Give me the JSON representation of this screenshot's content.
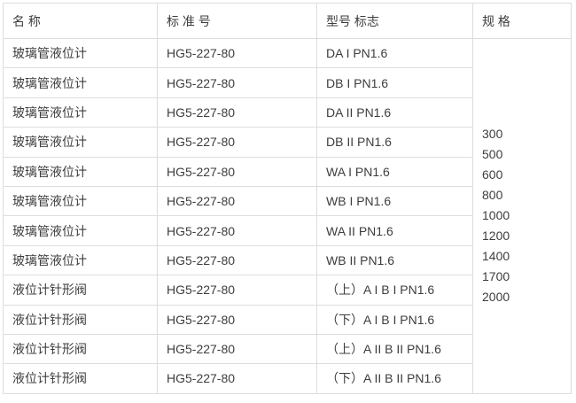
{
  "colors": {
    "border": "#dddddd",
    "text": "#3d3d3d",
    "background": "#ffffff"
  },
  "table": {
    "headers": [
      "名 称",
      "标 准 号",
      "型号 标志",
      "规 格"
    ],
    "rows": [
      {
        "name": "玻璃管液位计",
        "standard": "HG5-227-80",
        "model": "DA I PN1.6"
      },
      {
        "name": "玻璃管液位计",
        "standard": "HG5-227-80",
        "model": "DB I PN1.6"
      },
      {
        "name": "玻璃管液位计",
        "standard": "HG5-227-80",
        "model": "DA II PN1.6"
      },
      {
        "name": "玻璃管液位计",
        "standard": "HG5-227-80",
        "model": "DB II PN1.6"
      },
      {
        "name": "玻璃管液位计",
        "standard": "HG5-227-80",
        "model": "WA I PN1.6"
      },
      {
        "name": "玻璃管液位计",
        "standard": "HG5-227-80",
        "model": "WB I PN1.6"
      },
      {
        "name": "玻璃管液位计",
        "standard": "HG5-227-80",
        "model": "WA II PN1.6"
      },
      {
        "name": "玻璃管液位计",
        "standard": "HG5-227-80",
        "model": "WB II PN1.6"
      },
      {
        "name": "液位计针形阀",
        "standard": "HG5-227-80",
        "model": "（上）A I B I PN1.6"
      },
      {
        "name": "液位计针形阀",
        "standard": "HG5-227-80",
        "model": "（下）A I B I PN1.6"
      },
      {
        "name": "液位计针形阀",
        "standard": "HG5-227-80",
        "model": "（上）A II B II PN1.6"
      },
      {
        "name": "液位计针形阀",
        "standard": "HG5-227-80",
        "model": "（下）A II B II PN1.6"
      }
    ],
    "spec_values": [
      "300",
      "500",
      "600",
      "800",
      "1000",
      "1200",
      "1400",
      "1700",
      "2000"
    ]
  }
}
